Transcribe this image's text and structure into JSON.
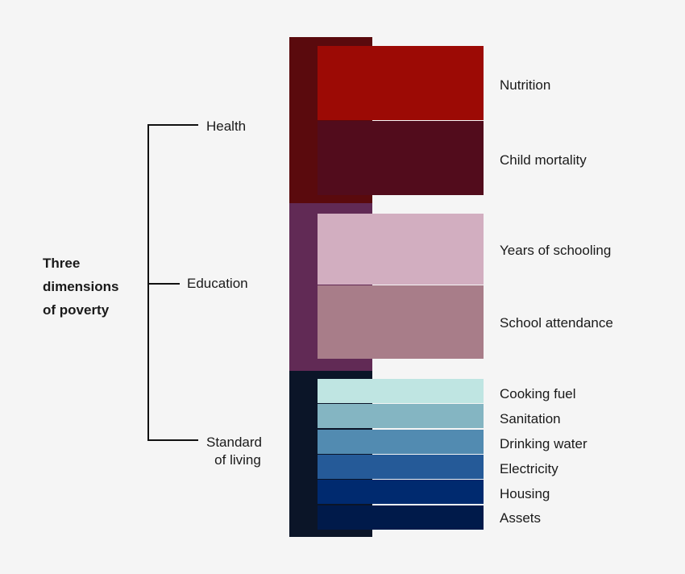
{
  "title": {
    "line1": "Three",
    "line2": "dimensions",
    "line3": "of poverty"
  },
  "dimensions": [
    {
      "label": "Health",
      "color": "#5a0a0d",
      "indicators": [
        {
          "label": "Nutrition",
          "color": "#9c0a05"
        },
        {
          "label": "Child mortality",
          "color": "#520c1c"
        }
      ]
    },
    {
      "label": "Education",
      "color": "#612a55",
      "indicators": [
        {
          "label": "Years of schooling",
          "color": "#d2aec0"
        },
        {
          "label": "School attendance",
          "color": "#a87d89"
        }
      ]
    },
    {
      "label_line1": "Standard",
      "label_line2": "of living",
      "color": "#0b1528",
      "indicators": [
        {
          "label": "Cooking fuel",
          "color": "#bfe5e2"
        },
        {
          "label": "Sanitation",
          "color": "#84b5c2"
        },
        {
          "label": "Drinking water",
          "color": "#528bb1"
        },
        {
          "label": "Electricity",
          "color": "#255a98"
        },
        {
          "label": "Housing",
          "color": "#002a6f"
        },
        {
          "label": "Assets",
          "color": "#001a4a"
        }
      ]
    }
  ]
}
